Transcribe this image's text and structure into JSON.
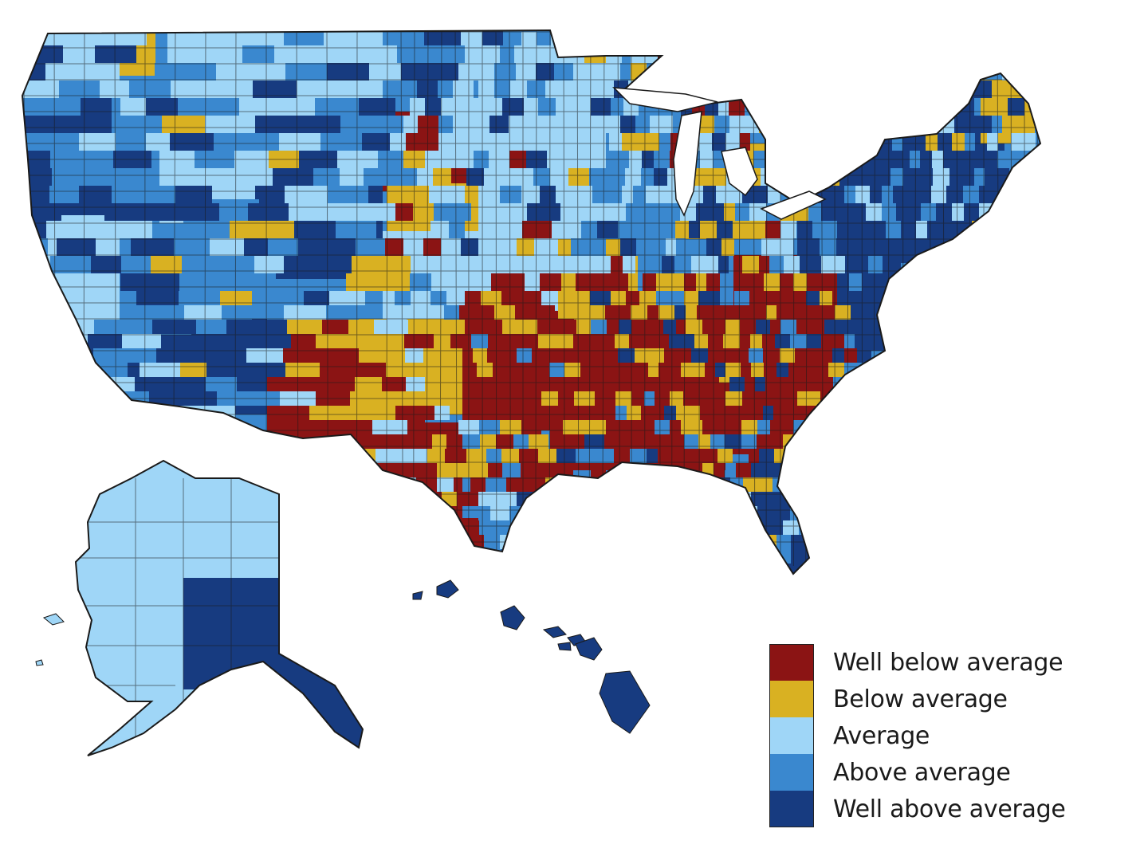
{
  "map": {
    "regions": {
      "contiguous_us": "Contiguous United States (county level)",
      "alaska": "Alaska",
      "hawaii": "Hawaii"
    },
    "palette": {
      "well_below": "#8b1414",
      "below": "#d9b122",
      "average": "#9fd6f7",
      "above": "#3a88cf",
      "well_above": "#173b80",
      "border": "#1a1a1a"
    }
  },
  "legend": {
    "items": [
      {
        "label": "Well below average",
        "color": "#8b1414"
      },
      {
        "label": "Below average",
        "color": "#d9b122"
      },
      {
        "label": "Average",
        "color": "#9fd6f7"
      },
      {
        "label": "Above average",
        "color": "#3a88cf"
      },
      {
        "label": "Well above average",
        "color": "#173b80"
      }
    ]
  }
}
